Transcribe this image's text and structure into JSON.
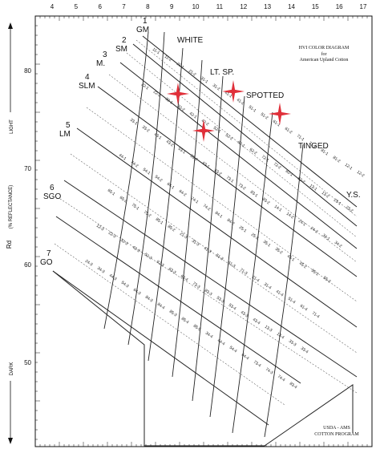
{
  "title": "HVI COLOR DIAGRAM",
  "subtitle_for": "for",
  "subtitle": "American Upland Cotton",
  "footer": [
    "USDA - AMS",
    "COTTON PROGRAM"
  ],
  "y_axis": {
    "label": "Rd",
    "label_unit": "(% REFLECTANCE)",
    "top_label": "LIGHT",
    "bottom_label": "DARK",
    "ticks": [
      "80",
      "70",
      "60",
      "50"
    ]
  },
  "x_axis": {
    "ticks": [
      "4",
      "5",
      "6",
      "7",
      "8",
      "9",
      "10",
      "11",
      "12",
      "13",
      "14",
      "15",
      "16",
      "17"
    ]
  },
  "grades": [
    {
      "num": "1",
      "name": "GM"
    },
    {
      "num": "2",
      "name": "SM"
    },
    {
      "num": "3",
      "name": "M."
    },
    {
      "num": "4",
      "name": "SLM"
    },
    {
      "num": "5",
      "name": "LM"
    },
    {
      "num": "6",
      "name": "SGO"
    },
    {
      "num": "7",
      "name": "GO"
    }
  ],
  "zones": [
    "WHITE",
    "LT. SP.",
    "SPOTTED",
    "TINGED",
    "Y.S."
  ],
  "cells": [
    "11-1",
    "11-2",
    "21-1",
    "21-2",
    "31-1",
    "31-2",
    "41-1",
    "41-2",
    "51-1",
    "51-2",
    "61-1",
    "61-2",
    "71-1",
    "71-2",
    "81-1",
    "81-2",
    "12-1",
    "12-2",
    "22-1",
    "22-2",
    "32-1",
    "32-2",
    "42-1",
    "42-2",
    "52-1",
    "52-2",
    "62-1",
    "62-2",
    "72-1",
    "72-2",
    "82-1",
    "82-2",
    "13-1",
    "13-2",
    "23-1",
    "23-2",
    "33-1",
    "33-2",
    "43-1",
    "43-2",
    "53-1",
    "53-2",
    "63-1",
    "63-2",
    "73-1",
    "73-2",
    "83-1",
    "83-2",
    "14-1",
    "14-2",
    "24-1",
    "24-2",
    "34-1",
    "34-2",
    "44-1",
    "44-2",
    "54-1",
    "54-2",
    "64-1",
    "64-2",
    "74-1",
    "74-2",
    "84-1",
    "84-2",
    "25-1",
    "25-2",
    "35-1",
    "35-2",
    "45-1",
    "45-2",
    "55-1",
    "55-2",
    "65-1",
    "65-2",
    "75-1",
    "75-2",
    "85-1",
    "85-2",
    "21-3",
    "31-3",
    "41-3",
    "51-3",
    "61-3",
    "71-3",
    "21-4",
    "31-4",
    "41-4",
    "51-4",
    "61-4",
    "71-4",
    "12-3",
    "22-3",
    "32-3",
    "42-3",
    "52-3",
    "62-3",
    "63-3",
    "63-4",
    "73-3",
    "83-3",
    "53-3",
    "53-4",
    "43-3",
    "43-4",
    "13-3",
    "13-4",
    "33-3",
    "33-4",
    "24-3",
    "34-3",
    "44-3",
    "54-3",
    "64-3",
    "84-3",
    "84-4",
    "85-3",
    "85-4",
    "85-5",
    "34-4",
    "44-4",
    "54-4",
    "64-4",
    "73-4",
    "74-3",
    "74-4",
    "83-4"
  ],
  "markers": [
    {
      "name": "marker-star-1"
    },
    {
      "name": "marker-star-2"
    },
    {
      "name": "marker-star-3"
    },
    {
      "name": "marker-star-4"
    }
  ],
  "colors": {
    "line": "#222222",
    "marker": "#e0303a",
    "background": "#ffffff"
  }
}
